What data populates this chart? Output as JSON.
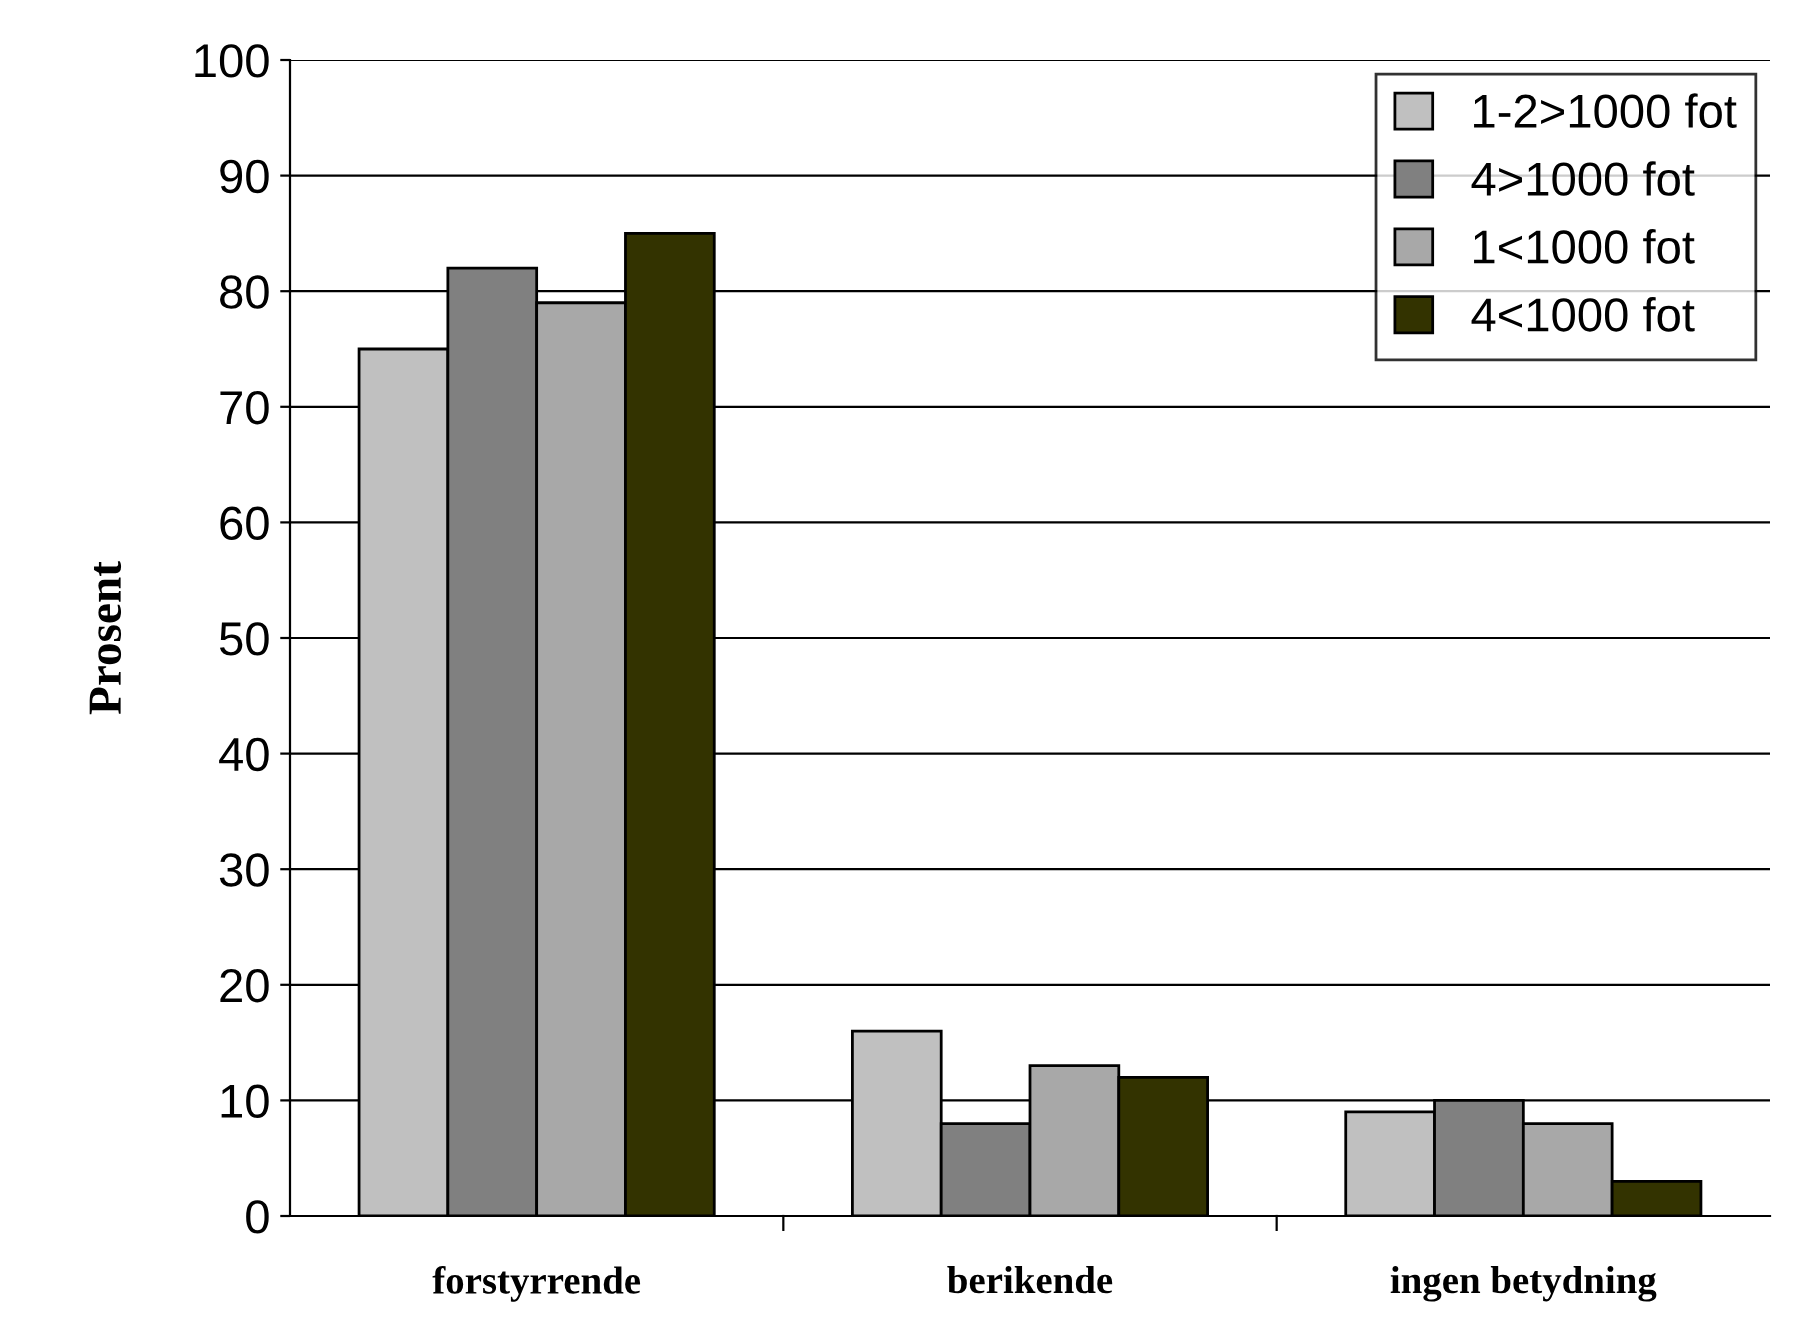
{
  "chart_data": {
    "type": "bar",
    "ylabel": "Prosent",
    "categories": [
      "forstyrrende",
      "berikende",
      "ingen betydning"
    ],
    "series": [
      {
        "name": "1-2>1000 fot",
        "color": "#c0c0c0",
        "values": [
          75,
          16,
          9
        ]
      },
      {
        "name": "4>1000 fot",
        "color": "#808080",
        "values": [
          82,
          8,
          10
        ]
      },
      {
        "name": "1<1000 fot",
        "color": "#a8a8a8",
        "values": [
          79,
          13,
          8
        ]
      },
      {
        "name": "4<1000 fot",
        "color": "#333300",
        "values": [
          85,
          12,
          3
        ]
      }
    ],
    "ylim": [
      0,
      100
    ],
    "yticks": [
      0,
      10,
      20,
      30,
      40,
      50,
      60,
      70,
      80,
      90,
      100
    ],
    "grid": "y",
    "legend": "top right"
  }
}
